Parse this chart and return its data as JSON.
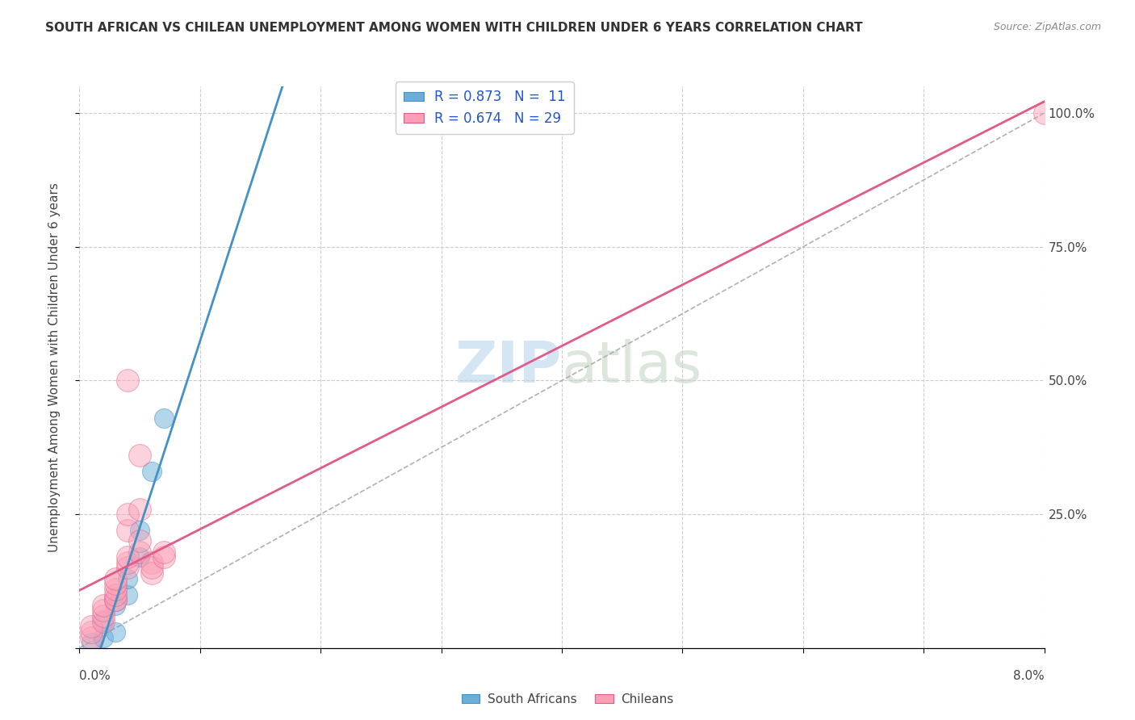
{
  "title": "SOUTH AFRICAN VS CHILEAN UNEMPLOYMENT AMONG WOMEN WITH CHILDREN UNDER 6 YEARS CORRELATION CHART",
  "source": "Source: ZipAtlas.com",
  "ylabel": "Unemployment Among Women with Children Under 6 years",
  "legend_blue_R": "R = 0.873",
  "legend_blue_N": "N =  11",
  "legend_pink_R": "R = 0.674",
  "legend_pink_N": "N = 29",
  "watermark_zip": "ZIP",
  "watermark_atlas": "atlas",
  "blue_color": "#6baed6",
  "pink_color": "#fa9fb5",
  "line_blue": "#4292c6",
  "line_pink": "#e05a8a",
  "line_dashed": "#b0b0b0",
  "right_yticks": [
    "100.0%",
    "75.0%",
    "50.0%",
    "25.0%"
  ],
  "right_ytick_vals": [
    1.0,
    0.75,
    0.5,
    0.25
  ],
  "sa_points": [
    [
      0.001,
      0.01
    ],
    [
      0.002,
      0.02
    ],
    [
      0.002,
      0.05
    ],
    [
      0.003,
      0.03
    ],
    [
      0.003,
      0.08
    ],
    [
      0.004,
      0.1
    ],
    [
      0.004,
      0.13
    ],
    [
      0.005,
      0.17
    ],
    [
      0.005,
      0.22
    ],
    [
      0.006,
      0.33
    ],
    [
      0.007,
      0.43
    ]
  ],
  "cl_points": [
    [
      0.001,
      0.02
    ],
    [
      0.001,
      0.03
    ],
    [
      0.001,
      0.04
    ],
    [
      0.002,
      0.05
    ],
    [
      0.002,
      0.06
    ],
    [
      0.002,
      0.07
    ],
    [
      0.002,
      0.08
    ],
    [
      0.003,
      0.09
    ],
    [
      0.003,
      0.09
    ],
    [
      0.003,
      0.1
    ],
    [
      0.003,
      0.11
    ],
    [
      0.003,
      0.12
    ],
    [
      0.003,
      0.13
    ],
    [
      0.004,
      0.15
    ],
    [
      0.004,
      0.16
    ],
    [
      0.004,
      0.17
    ],
    [
      0.004,
      0.22
    ],
    [
      0.004,
      0.25
    ],
    [
      0.005,
      0.18
    ],
    [
      0.005,
      0.2
    ],
    [
      0.005,
      0.26
    ],
    [
      0.005,
      0.36
    ],
    [
      0.006,
      0.16
    ],
    [
      0.006,
      0.14
    ],
    [
      0.006,
      0.15
    ],
    [
      0.004,
      0.5
    ],
    [
      0.007,
      0.17
    ],
    [
      0.007,
      0.18
    ],
    [
      0.08,
      1.0
    ]
  ],
  "xmin": 0.0,
  "xmax": 0.08,
  "ymin": 0.0,
  "ymax": 1.05
}
